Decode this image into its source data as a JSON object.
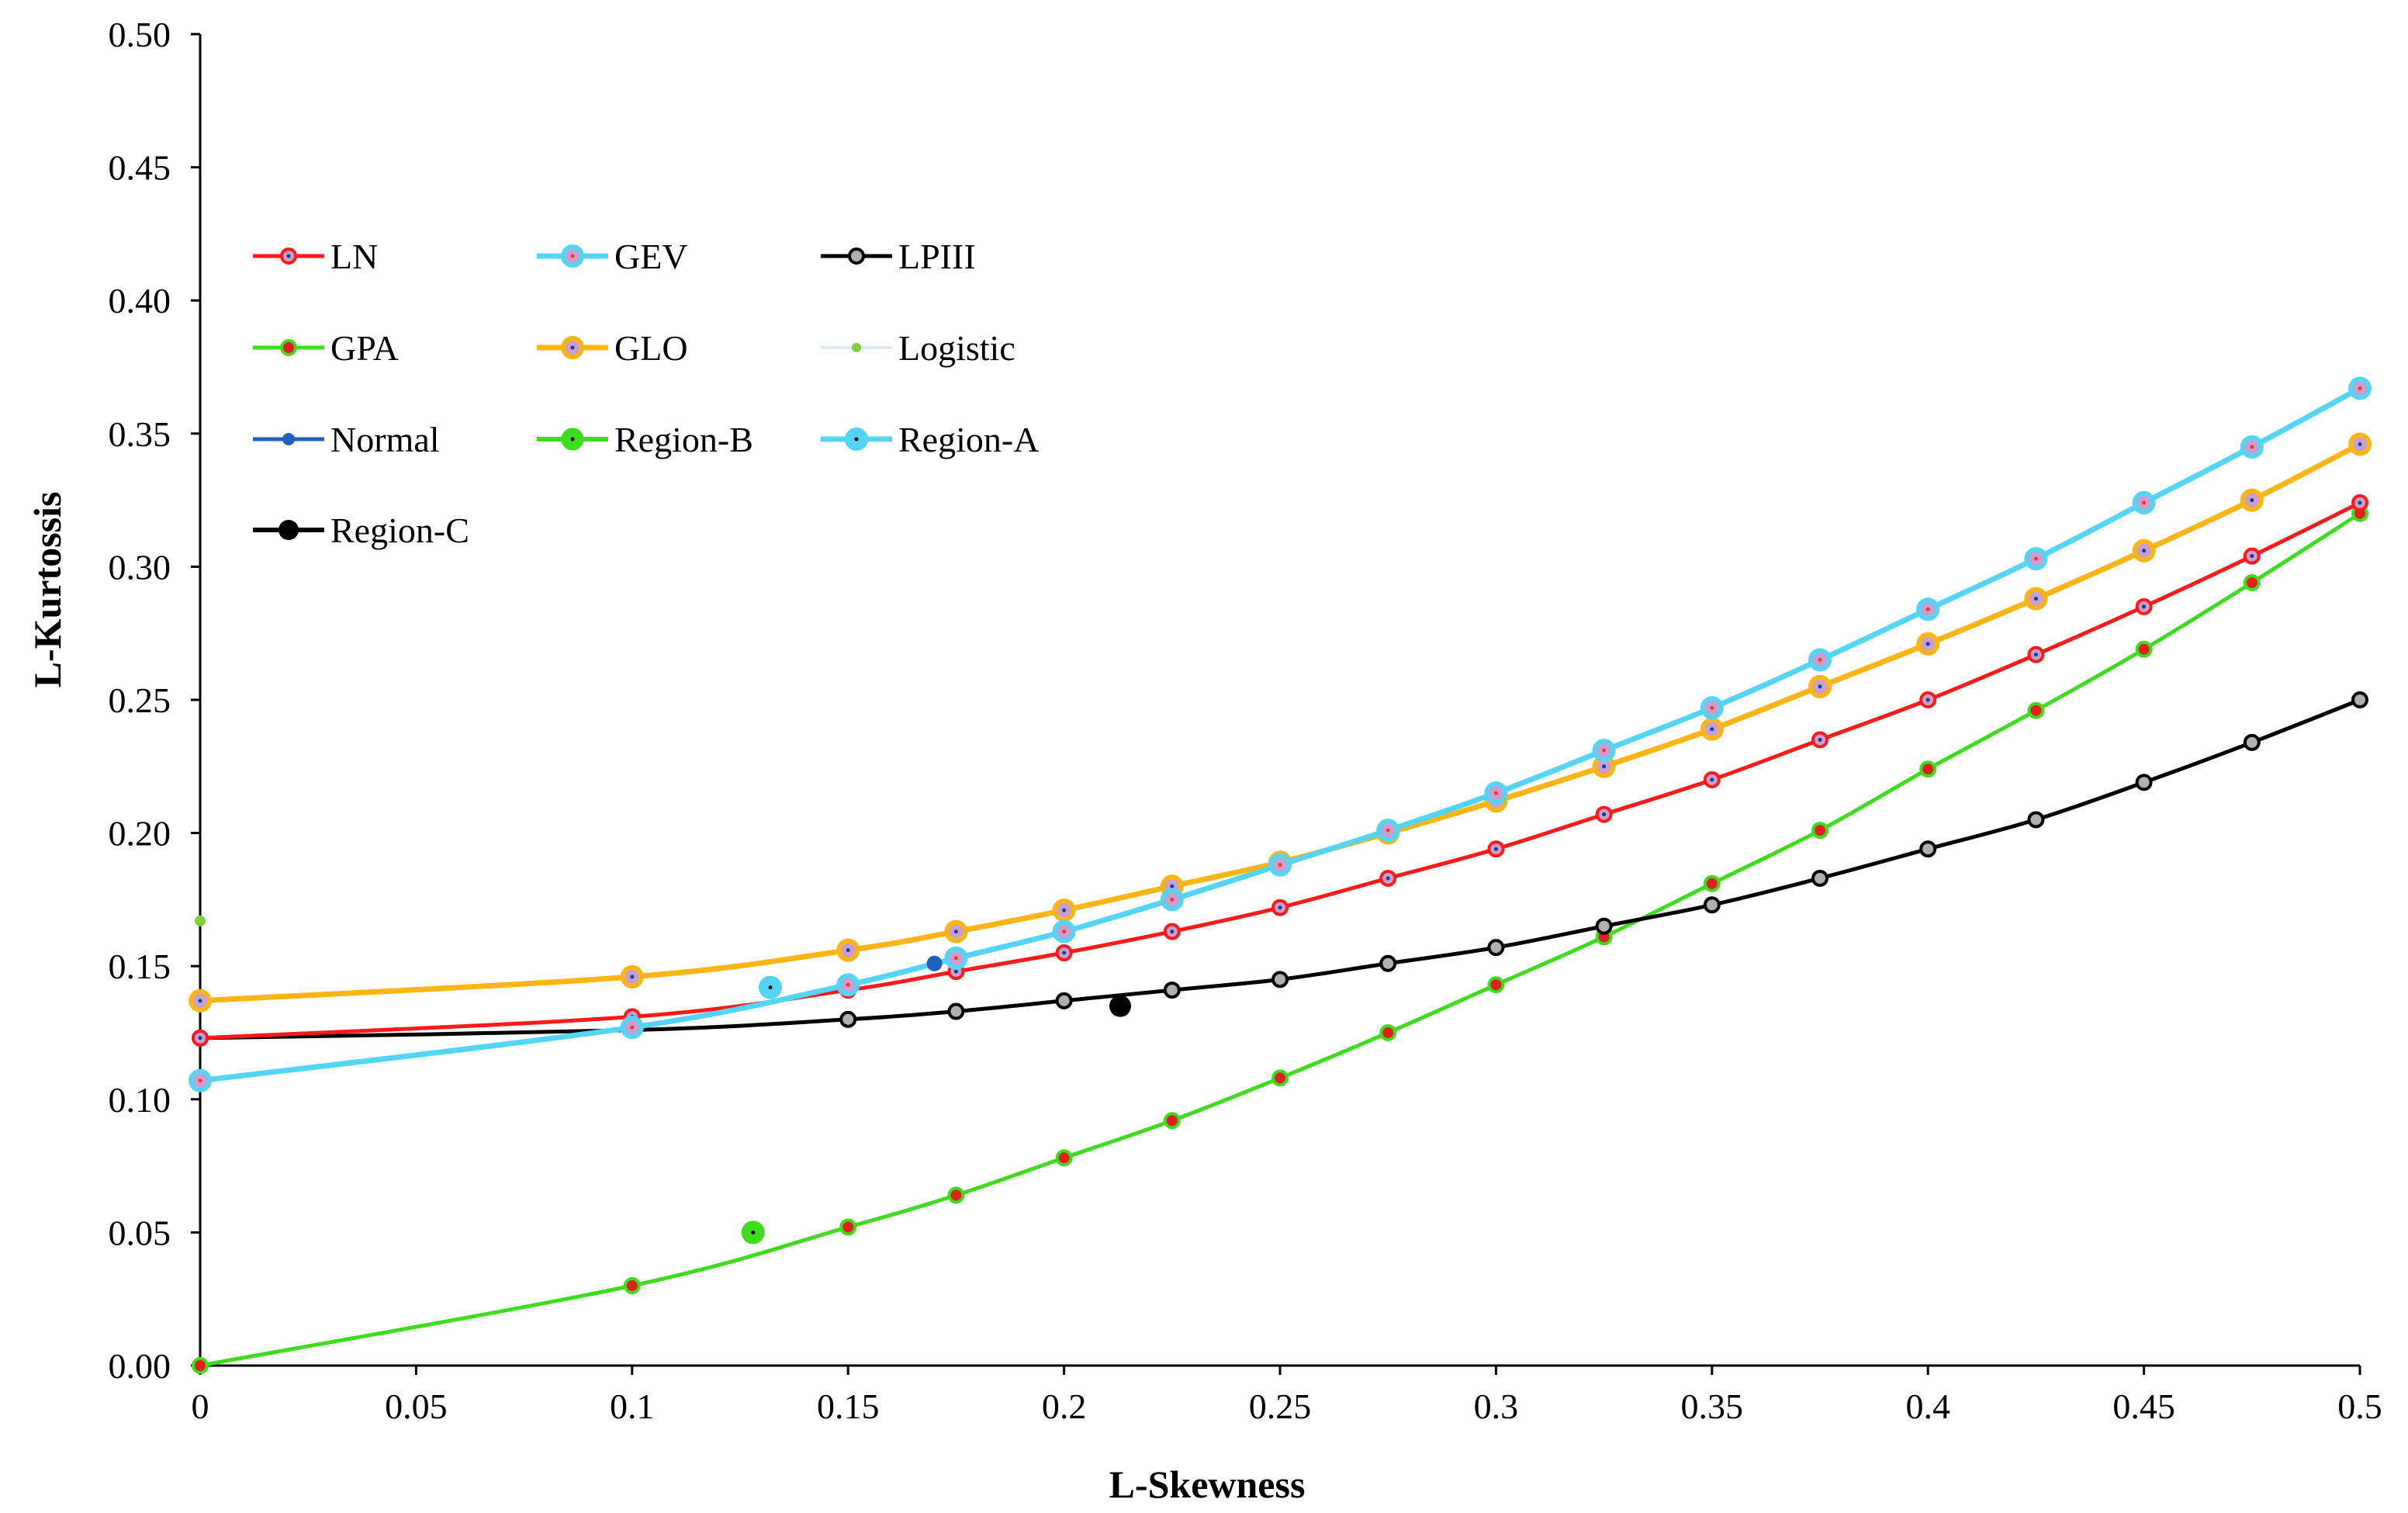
{
  "chart_data": {
    "type": "line",
    "title": "",
    "xlabel": "L-Skewness",
    "ylabel": "L-Kurtossis",
    "xlim": [
      0,
      0.5
    ],
    "ylim": [
      0,
      0.5
    ],
    "x_ticks": [
      {
        "value": 0,
        "label": "0"
      },
      {
        "value": 0.05,
        "label": "0.05"
      },
      {
        "value": 0.1,
        "label": "0.1"
      },
      {
        "value": 0.15,
        "label": "0.15"
      },
      {
        "value": 0.2,
        "label": "0.2"
      },
      {
        "value": 0.25,
        "label": "0.25"
      },
      {
        "value": 0.3,
        "label": "0.3"
      },
      {
        "value": 0.35,
        "label": "0.35"
      },
      {
        "value": 0.4,
        "label": "0.4"
      },
      {
        "value": 0.45,
        "label": "0.45"
      },
      {
        "value": 0.5,
        "label": "0.5"
      }
    ],
    "y_ticks": [
      {
        "value": 0,
        "label": "0.00"
      },
      {
        "value": 0.05,
        "label": "0.05"
      },
      {
        "value": 0.1,
        "label": "0.10"
      },
      {
        "value": 0.15,
        "label": "0.15"
      },
      {
        "value": 0.2,
        "label": "0.20"
      },
      {
        "value": 0.25,
        "label": "0.25"
      },
      {
        "value": 0.3,
        "label": "0.30"
      },
      {
        "value": 0.35,
        "label": "0.35"
      },
      {
        "value": 0.4,
        "label": "0.40"
      },
      {
        "value": 0.45,
        "label": "0.45"
      },
      {
        "value": 0.5,
        "label": "0.50"
      }
    ],
    "grid": false,
    "legend_position": "top-left",
    "series": [
      {
        "name": "LN",
        "kind": "curve",
        "line_color": "#ff1a1a",
        "marker_fill": "#c8a0d0",
        "marker_stroke": "#ff1a1a",
        "dot_color": "#1a3d8f",
        "x": [
          0,
          0.1,
          0.15,
          0.175,
          0.2,
          0.225,
          0.25,
          0.275,
          0.3,
          0.325,
          0.35,
          0.375,
          0.4,
          0.425,
          0.45,
          0.475,
          0.5
        ],
        "y": [
          0.123,
          0.131,
          0.141,
          0.148,
          0.155,
          0.163,
          0.172,
          0.183,
          0.194,
          0.207,
          0.22,
          0.235,
          0.25,
          0.267,
          0.285,
          0.304,
          0.324
        ]
      },
      {
        "name": "GEV",
        "kind": "curve",
        "line_color": "#55d5f5",
        "marker_fill": "#c8a0d0",
        "marker_stroke": "#55d5f5",
        "dot_color": "#ff3030",
        "x": [
          0,
          0.1,
          0.15,
          0.175,
          0.2,
          0.225,
          0.25,
          0.275,
          0.3,
          0.325,
          0.35,
          0.375,
          0.4,
          0.425,
          0.45,
          0.475,
          0.5
        ],
        "y": [
          0.107,
          0.127,
          0.143,
          0.153,
          0.163,
          0.175,
          0.188,
          0.201,
          0.215,
          0.231,
          0.247,
          0.265,
          0.284,
          0.303,
          0.324,
          0.345,
          0.367
        ]
      },
      {
        "name": "LPIII",
        "kind": "curve",
        "line_color": "#000000",
        "marker_fill": "#b0b0b0",
        "marker_stroke": "#000000",
        "dot_color": "",
        "x": [
          0,
          0.1,
          0.15,
          0.175,
          0.2,
          0.225,
          0.25,
          0.275,
          0.3,
          0.325,
          0.35,
          0.375,
          0.4,
          0.425,
          0.45,
          0.475,
          0.5
        ],
        "y": [
          0.123,
          0.126,
          0.13,
          0.133,
          0.137,
          0.141,
          0.145,
          0.151,
          0.157,
          0.165,
          0.173,
          0.183,
          0.194,
          0.205,
          0.219,
          0.234,
          0.25
        ]
      },
      {
        "name": "GPA",
        "kind": "curve",
        "line_color": "#3ddd1e",
        "marker_fill": "#e02020",
        "marker_stroke": "#3ddd1e",
        "dot_color": "",
        "x": [
          0,
          0.1,
          0.15,
          0.175,
          0.2,
          0.225,
          0.25,
          0.275,
          0.3,
          0.325,
          0.35,
          0.375,
          0.4,
          0.425,
          0.45,
          0.475,
          0.5
        ],
        "y": [
          0.0,
          0.03,
          0.052,
          0.064,
          0.078,
          0.092,
          0.108,
          0.125,
          0.143,
          0.161,
          0.181,
          0.201,
          0.224,
          0.246,
          0.269,
          0.294,
          0.32
        ]
      },
      {
        "name": "GLO",
        "kind": "curve",
        "line_color": "#fdb515",
        "marker_fill": "#c8a0d0",
        "marker_stroke": "#fdb515",
        "dot_color": "#1a3d8f",
        "x": [
          0,
          0.1,
          0.15,
          0.175,
          0.2,
          0.225,
          0.25,
          0.275,
          0.3,
          0.325,
          0.35,
          0.375,
          0.4,
          0.425,
          0.45,
          0.475,
          0.5
        ],
        "y": [
          0.137,
          0.146,
          0.156,
          0.163,
          0.171,
          0.18,
          0.189,
          0.2,
          0.212,
          0.225,
          0.239,
          0.255,
          0.271,
          0.288,
          0.306,
          0.325,
          0.346
        ]
      },
      {
        "name": "Logistic",
        "kind": "point",
        "line_color": "#dbe8f7",
        "marker_fill": "#7fd33a",
        "marker_stroke": "#7fd33a",
        "dot_color": "",
        "x": [
          0
        ],
        "y": [
          0.167
        ]
      },
      {
        "name": "Normal",
        "kind": "point",
        "line_color": "#2060c0",
        "marker_fill": "#2060c0",
        "marker_stroke": "#2060c0",
        "dot_color": "",
        "x": [
          0.17
        ],
        "y": [
          0.151
        ]
      },
      {
        "name": "Region-B",
        "kind": "point",
        "line_color": "#3ddd1e",
        "marker_fill": "#3ddd1e",
        "marker_stroke": "#3ddd1e",
        "dot_color": "#000000",
        "x": [
          0.128
        ],
        "y": [
          0.05
        ]
      },
      {
        "name": "Region-A",
        "kind": "point",
        "line_color": "#55d5f5",
        "marker_fill": "#55d5f5",
        "marker_stroke": "#55d5f5",
        "dot_color": "#000000",
        "x": [
          0.132
        ],
        "y": [
          0.142
        ]
      },
      {
        "name": "Region-C",
        "kind": "point",
        "line_color": "#000000",
        "marker_fill": "#000000",
        "marker_stroke": "#000000",
        "dot_color": "",
        "x": [
          0.213
        ],
        "y": [
          0.135
        ]
      }
    ]
  }
}
